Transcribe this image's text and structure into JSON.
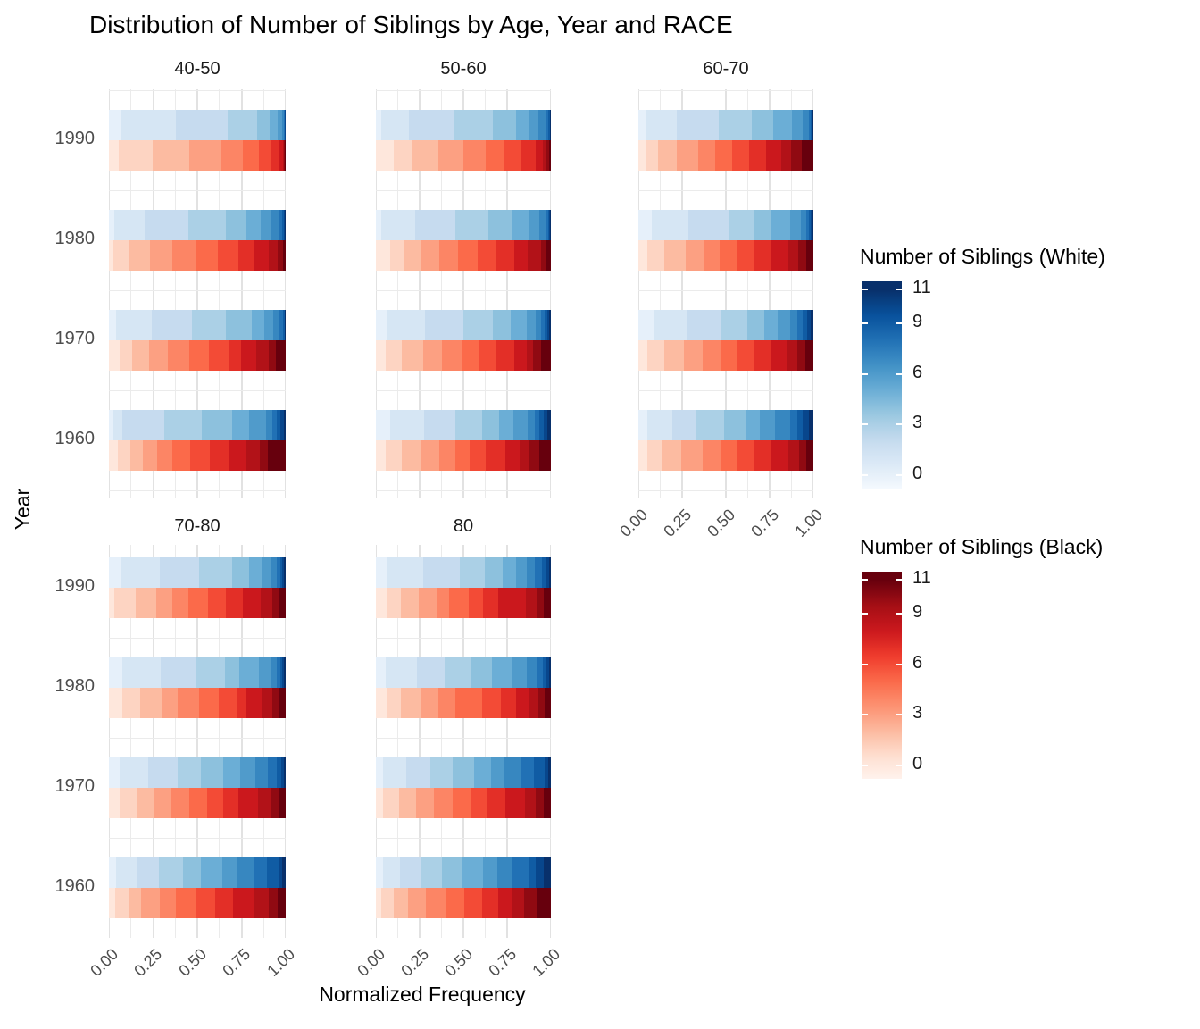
{
  "chart_data": {
    "type": "bar",
    "subtype": "horizontal-stacked-normalized-faceted",
    "title": "Distribution of Number of Siblings by Age, Year and RACE",
    "xlabel": "Normalized Frequency",
    "ylabel": "Year",
    "facets": [
      "40-50",
      "50-60",
      "60-70",
      "70-80",
      "80"
    ],
    "years": [
      "1990",
      "1980",
      "1970",
      "1960"
    ],
    "x_tick_labels": [
      "0.00",
      "0.25",
      "0.50",
      "0.75",
      "1.00"
    ],
    "x_tick_values": [
      0,
      0.25,
      0.5,
      0.75,
      1.0
    ],
    "x_range": [
      0,
      1
    ],
    "sibling_values": [
      0,
      1,
      2,
      3,
      4,
      5,
      6,
      7,
      8,
      9,
      10,
      11
    ],
    "grid": "major and minor light-gray gridlines on white background",
    "legend_position": "right",
    "colors": {
      "background": "#ffffff",
      "grid_major": "#e2e2e2",
      "grid_minor": "#ebebeb",
      "title_text": "#000000",
      "tick_text": "#4d4d4d",
      "strip_text": "#1a1a1a"
    },
    "legends": [
      {
        "id": "white",
        "title": "Number of Siblings (White)",
        "tick_labels": [
          "11",
          "9",
          "6",
          "3",
          "0"
        ],
        "ramp": [
          "#f7fbff",
          "#deebf7",
          "#c6dbef",
          "#9ecae1",
          "#6baed6",
          "#4292c6",
          "#2171b5",
          "#08519c",
          "#08306b"
        ]
      },
      {
        "id": "black",
        "title": "Number of Siblings (Black)",
        "tick_labels": [
          "11",
          "9",
          "6",
          "3",
          "0"
        ],
        "ramp": [
          "#fff5f0",
          "#fee0d2",
          "#fcbba1",
          "#fc9272",
          "#fb6a4a",
          "#ef3b2c",
          "#cb181d",
          "#a50f15",
          "#67000d"
        ]
      }
    ],
    "distributions": {
      "40-50": {
        "1990": {
          "white": [
            0.068,
            0.31,
            0.295,
            0.167,
            0.067,
            0.05,
            0.022,
            0.012,
            0.004,
            0.002,
            0.002,
            0.001
          ],
          "black": [
            0.058,
            0.188,
            0.207,
            0.18,
            0.125,
            0.092,
            0.067,
            0.042,
            0.025,
            0.008,
            0.005,
            0.003
          ]
        },
        "1980": {
          "white": [
            0.03,
            0.17,
            0.25,
            0.21,
            0.12,
            0.08,
            0.06,
            0.04,
            0.02,
            0.01,
            0.006,
            0.004
          ],
          "black": [
            0.025,
            0.085,
            0.12,
            0.13,
            0.135,
            0.12,
            0.12,
            0.09,
            0.08,
            0.05,
            0.028,
            0.017
          ]
        },
        "1970": {
          "white": [
            0.04,
            0.2,
            0.23,
            0.19,
            0.15,
            0.07,
            0.05,
            0.035,
            0.02,
            0.008,
            0.004,
            0.003
          ],
          "black": [
            0.06,
            0.07,
            0.095,
            0.11,
            0.12,
            0.11,
            0.11,
            0.075,
            0.085,
            0.07,
            0.04,
            0.055
          ]
        },
        "1960": {
          "white": [
            0.025,
            0.05,
            0.24,
            0.21,
            0.17,
            0.1,
            0.095,
            0.035,
            0.025,
            0.02,
            0.02,
            0.01
          ],
          "black": [
            0.05,
            0.07,
            0.07,
            0.085,
            0.085,
            0.1,
            0.11,
            0.11,
            0.1,
            0.075,
            0.045,
            0.1
          ]
        }
      },
      "50-60": {
        "1990": {
          "white": [
            0.03,
            0.16,
            0.26,
            0.22,
            0.13,
            0.08,
            0.05,
            0.04,
            0.015,
            0.008,
            0.004,
            0.003
          ],
          "black": [
            0.1,
            0.11,
            0.145,
            0.145,
            0.13,
            0.1,
            0.1,
            0.085,
            0.04,
            0.02,
            0.013,
            0.012
          ]
        },
        "1980": {
          "white": [
            0.03,
            0.195,
            0.23,
            0.19,
            0.135,
            0.095,
            0.06,
            0.035,
            0.015,
            0.007,
            0.004,
            0.004
          ],
          "black": [
            0.08,
            0.08,
            0.1,
            0.1,
            0.11,
            0.11,
            0.11,
            0.1,
            0.08,
            0.075,
            0.03,
            0.025
          ]
        },
        "1970": {
          "white": [
            0.06,
            0.22,
            0.22,
            0.17,
            0.1,
            0.095,
            0.05,
            0.03,
            0.02,
            0.013,
            0.011,
            0.011
          ],
          "black": [
            0.055,
            0.095,
            0.12,
            0.11,
            0.11,
            0.1,
            0.1,
            0.1,
            0.075,
            0.035,
            0.045,
            0.055
          ]
        },
        "1960": {
          "white": [
            0.08,
            0.195,
            0.18,
            0.15,
            0.1,
            0.08,
            0.085,
            0.04,
            0.025,
            0.025,
            0.02,
            0.02
          ],
          "black": [
            0.055,
            0.095,
            0.11,
            0.1,
            0.095,
            0.08,
            0.095,
            0.11,
            0.08,
            0.06,
            0.055,
            0.065
          ]
        }
      },
      "60-70": {
        "1990": {
          "white": [
            0.04,
            0.18,
            0.24,
            0.19,
            0.12,
            0.11,
            0.06,
            0.035,
            0.012,
            0.006,
            0.004,
            0.003
          ],
          "black": [
            0.04,
            0.07,
            0.11,
            0.12,
            0.1,
            0.095,
            0.1,
            0.095,
            0.085,
            0.06,
            0.06,
            0.065
          ]
        },
        "1980": {
          "white": [
            0.075,
            0.21,
            0.23,
            0.145,
            0.1,
            0.11,
            0.06,
            0.03,
            0.015,
            0.01,
            0.008,
            0.007
          ],
          "black": [
            0.05,
            0.1,
            0.12,
            0.1,
            0.095,
            0.095,
            0.1,
            0.1,
            0.095,
            0.06,
            0.045,
            0.04
          ]
        },
        "1970": {
          "white": [
            0.085,
            0.195,
            0.195,
            0.15,
            0.095,
            0.075,
            0.075,
            0.04,
            0.03,
            0.025,
            0.02,
            0.015
          ],
          "black": [
            0.05,
            0.1,
            0.11,
            0.11,
            0.1,
            0.095,
            0.095,
            0.095,
            0.095,
            0.06,
            0.045,
            0.045
          ]
        },
        "1960": {
          "white": [
            0.05,
            0.145,
            0.135,
            0.16,
            0.12,
            0.085,
            0.085,
            0.09,
            0.04,
            0.03,
            0.035,
            0.025
          ],
          "black": [
            0.05,
            0.085,
            0.11,
            0.12,
            0.11,
            0.085,
            0.1,
            0.095,
            0.1,
            0.065,
            0.04,
            0.04
          ]
        }
      },
      "70-80": {
        "1990": {
          "white": [
            0.07,
            0.22,
            0.22,
            0.185,
            0.1,
            0.075,
            0.05,
            0.03,
            0.02,
            0.012,
            0.009,
            0.009
          ],
          "black": [
            0.03,
            0.12,
            0.12,
            0.09,
            0.09,
            0.11,
            0.1,
            0.1,
            0.1,
            0.065,
            0.04,
            0.035
          ]
        },
        "1980": {
          "white": [
            0.075,
            0.22,
            0.2,
            0.16,
            0.085,
            0.11,
            0.065,
            0.035,
            0.02,
            0.012,
            0.01,
            0.008
          ],
          "black": [
            0.075,
            0.1,
            0.125,
            0.09,
            0.12,
            0.11,
            0.1,
            0.06,
            0.085,
            0.06,
            0.04,
            0.035
          ]
        },
        "1970": {
          "white": [
            0.06,
            0.16,
            0.17,
            0.13,
            0.125,
            0.1,
            0.085,
            0.07,
            0.05,
            0.025,
            0.015,
            0.01
          ],
          "black": [
            0.06,
            0.095,
            0.1,
            0.1,
            0.1,
            0.1,
            0.09,
            0.09,
            0.11,
            0.07,
            0.045,
            0.04
          ]
        },
        "1960": {
          "white": [
            0.04,
            0.12,
            0.125,
            0.135,
            0.1,
            0.12,
            0.085,
            0.1,
            0.07,
            0.065,
            0.02,
            0.02
          ],
          "black": [
            0.035,
            0.075,
            0.07,
            0.11,
            0.09,
            0.11,
            0.11,
            0.1,
            0.125,
            0.08,
            0.05,
            0.045
          ]
        }
      },
      "80": {
        "1990": {
          "white": [
            0.06,
            0.21,
            0.21,
            0.145,
            0.1,
            0.075,
            0.06,
            0.05,
            0.04,
            0.025,
            0.015,
            0.01
          ],
          "black": [
            0.06,
            0.085,
            0.1,
            0.1,
            0.075,
            0.11,
            0.085,
            0.085,
            0.155,
            0.065,
            0.04,
            0.04
          ]
        },
        "1980": {
          "white": [
            0.055,
            0.18,
            0.16,
            0.145,
            0.125,
            0.11,
            0.09,
            0.06,
            0.03,
            0.02,
            0.015,
            0.01
          ],
          "black": [
            0.06,
            0.085,
            0.11,
            0.1,
            0.1,
            0.15,
            0.11,
            0.085,
            0.08,
            0.05,
            0.035,
            0.035
          ]
        },
        "1970": {
          "white": [
            0.04,
            0.135,
            0.135,
            0.13,
            0.12,
            0.1,
            0.075,
            0.095,
            0.075,
            0.06,
            0.02,
            0.015
          ],
          "black": [
            0.04,
            0.095,
            0.095,
            0.1,
            0.11,
            0.1,
            0.1,
            0.1,
            0.11,
            0.065,
            0.045,
            0.04
          ]
        },
        "1960": {
          "white": [
            0.04,
            0.1,
            0.12,
            0.12,
            0.11,
            0.12,
            0.085,
            0.085,
            0.095,
            0.04,
            0.045,
            0.04
          ],
          "black": [
            0.03,
            0.07,
            0.085,
            0.1,
            0.12,
            0.1,
            0.1,
            0.095,
            0.075,
            0.07,
            0.075,
            0.08
          ]
        }
      }
    }
  }
}
